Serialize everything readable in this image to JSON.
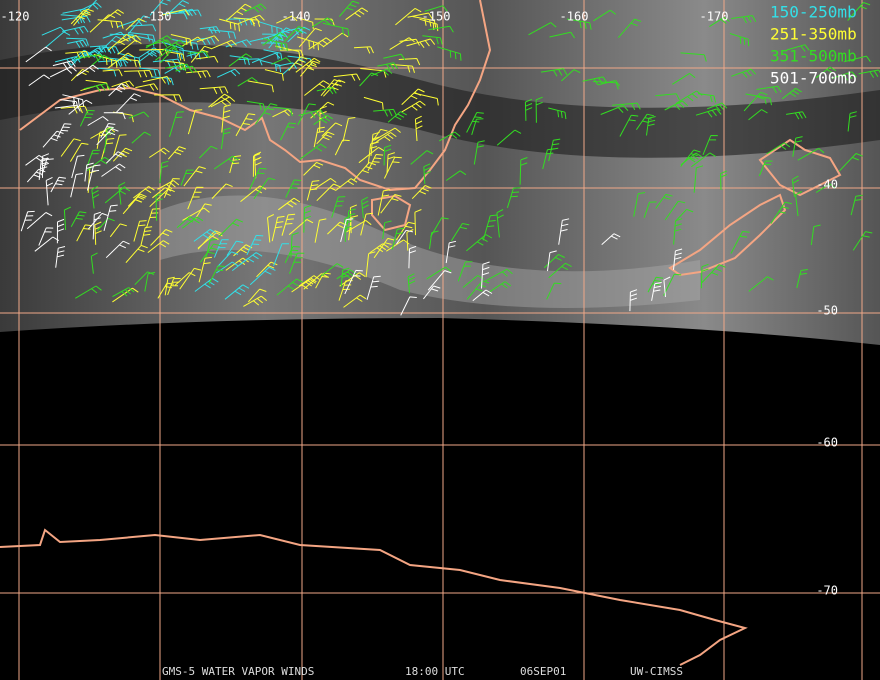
{
  "map": {
    "longitude_labels": [
      "-120",
      "-130",
      "-140",
      "-150",
      "-160",
      "-170"
    ],
    "latitude_labels": [
      "-40",
      "-50",
      "-60",
      "-70"
    ],
    "legend": [
      {
        "label": "150-250mb",
        "color": "#33e0e8"
      },
      {
        "label": "251-350mb",
        "color": "#ffff33"
      },
      {
        "label": "351-500mb",
        "color": "#33dd22"
      },
      {
        "label": "501-700mb",
        "color": "#ffffff"
      }
    ],
    "footer": [
      "GMS-5 WATER VAPOR WINDS",
      "18:00 UTC",
      "06SEP01",
      "UW-CIMSS"
    ]
  }
}
